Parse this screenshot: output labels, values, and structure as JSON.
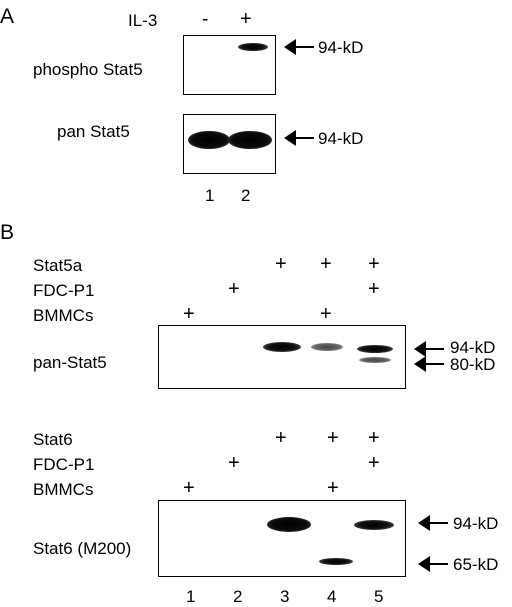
{
  "panelA": {
    "letter": "A",
    "treatment_label": "IL-3",
    "treatment_signs": [
      "-",
      "+"
    ],
    "blots": [
      {
        "label": "phospho Stat5",
        "marker": "94-kD"
      },
      {
        "label": "pan Stat5",
        "marker": "94-kD"
      }
    ],
    "lanes": [
      "1",
      "2"
    ]
  },
  "panelB": {
    "letter": "B",
    "top": {
      "rows": [
        {
          "label": "Stat5a",
          "signs": [
            "",
            "",
            "+",
            "+",
            "+"
          ]
        },
        {
          "label": "FDC-P1",
          "signs": [
            "",
            "+",
            "",
            "",
            "+"
          ]
        },
        {
          "label": "BMMCs",
          "signs": [
            "+",
            "",
            "",
            "+",
            ""
          ]
        }
      ],
      "blot_label": "pan-Stat5",
      "markers": [
        "94-kD",
        "80-kD"
      ]
    },
    "bottom": {
      "rows": [
        {
          "label": "Stat6",
          "signs": [
            "",
            "",
            "+",
            "+",
            "+"
          ]
        },
        {
          "label": "FDC-P1",
          "signs": [
            "",
            "+",
            "",
            "",
            "+"
          ]
        },
        {
          "label": "BMMCs",
          "signs": [
            "+",
            "",
            "",
            "+",
            ""
          ]
        }
      ],
      "blot_label": "Stat6 (M200)",
      "markers": [
        "94-kD",
        "65-kD"
      ]
    },
    "lanes": [
      "1",
      "2",
      "3",
      "4",
      "5"
    ]
  }
}
